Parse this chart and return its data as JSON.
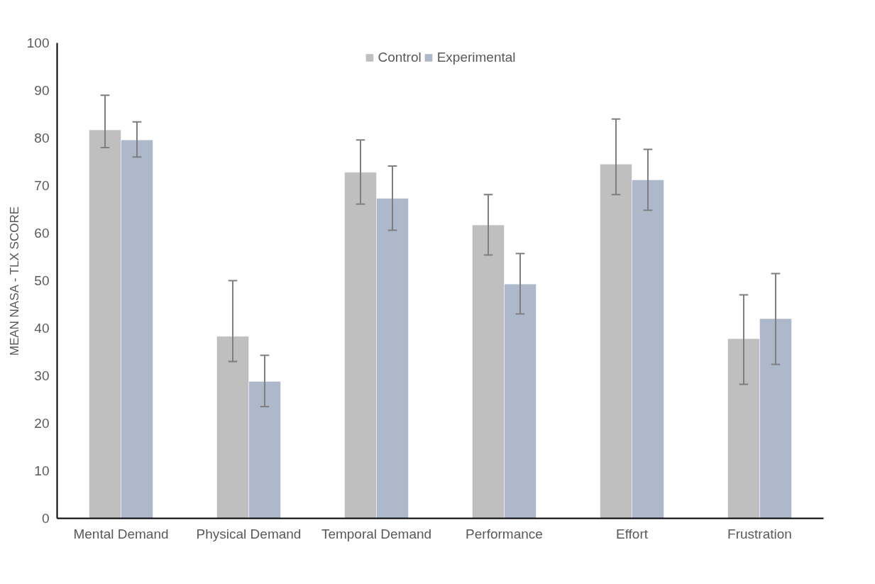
{
  "chart_data": {
    "type": "bar",
    "ylabel": "MEAN NASA - TLX SCORE",
    "categories": [
      "Mental Demand",
      "Physical Demand",
      "Temporal Demand",
      "Performance",
      "Effort",
      "Frustration"
    ],
    "series": [
      {
        "name": "Control",
        "color": "#bfbfbf",
        "values": [
          81.7,
          38.3,
          72.8,
          61.7,
          74.5,
          37.8
        ],
        "errors": [
          [
            78,
            89
          ],
          [
            33,
            50
          ],
          [
            66.1,
            79.6
          ],
          [
            55.4,
            68.1
          ],
          [
            68.1,
            84
          ],
          [
            28.2,
            47
          ]
        ]
      },
      {
        "name": "Experimental",
        "color": "#adb9ca",
        "values": [
          79.6,
          28.8,
          67.3,
          49.3,
          71.2,
          42
        ],
        "errors": [
          [
            76,
            83.4
          ],
          [
            23.5,
            34.3
          ],
          [
            60.6,
            74.1
          ],
          [
            43,
            55.7
          ],
          [
            64.8,
            77.6
          ],
          [
            32.4,
            51.5
          ]
        ]
      }
    ],
    "ylim": [
      0,
      100
    ],
    "yticks": [
      0,
      10,
      20,
      30,
      40,
      50,
      60,
      70,
      80,
      90,
      100
    ],
    "grid": false,
    "legend": "top"
  }
}
